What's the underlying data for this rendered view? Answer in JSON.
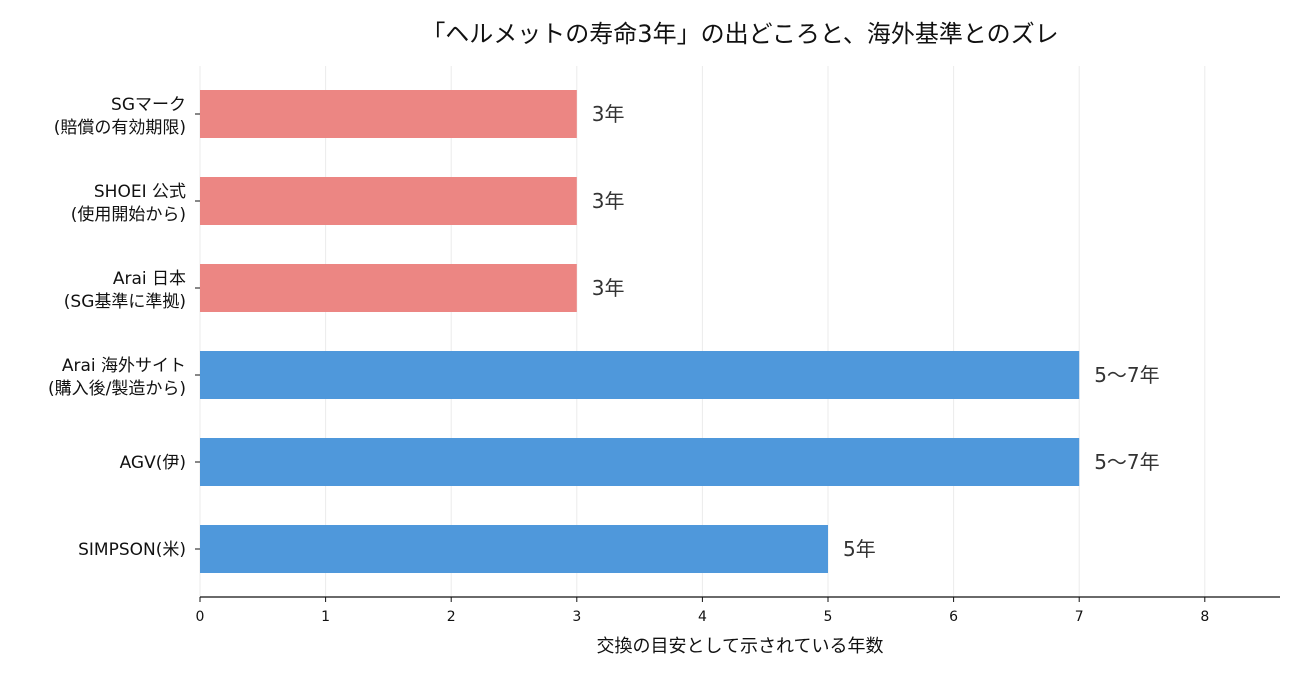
{
  "chart_data": {
    "type": "bar",
    "orientation": "horizontal",
    "title": "「ヘルメットの寿命3年」の出どころと、海外基準とのズレ",
    "xlabel": "交換の目安として示されている年数",
    "ylabel": "",
    "xlim": [
      0,
      8.6
    ],
    "xticks": [
      0,
      1,
      2,
      3,
      4,
      5,
      6,
      7,
      8
    ],
    "grid": "vertical",
    "categories": [
      [
        "SGマーク",
        "(賠償の有効期限)"
      ],
      [
        "SHOEI 公式",
        "(使用開始から)"
      ],
      [
        "Arai 日本",
        "(SG基準に準拠)"
      ],
      [
        "Arai 海外サイト",
        "(購入後/製造から)"
      ],
      [
        "AGV(伊)"
      ],
      [
        "SIMPSON(米)"
      ]
    ],
    "values": [
      3,
      3,
      3,
      7,
      7,
      5
    ],
    "data_labels": [
      "3年",
      "3年",
      "3年",
      "5〜7年",
      "5〜7年",
      "5年"
    ],
    "bar_colors": [
      "#ec8683",
      "#ec8683",
      "#ec8683",
      "#4f98db",
      "#4f98db",
      "#4f98db"
    ],
    "grid_color": "#ebebeb",
    "axis_color": "#111111"
  }
}
